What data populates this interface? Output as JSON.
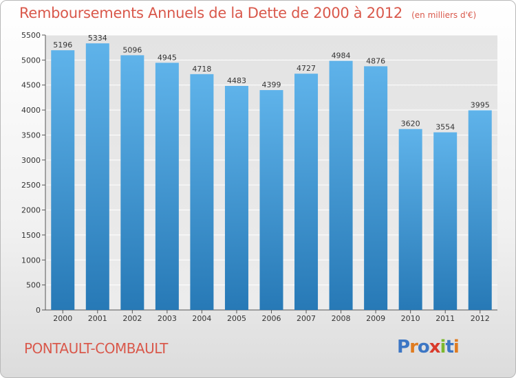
{
  "header": {
    "title": "Remboursements Annuels de la Dette de 2000 à 2012",
    "unit": "(en milliers d'€)"
  },
  "footer": {
    "town": "PONTAULT-COMBAULT",
    "logo_text": "Proxiti"
  },
  "colors": {
    "title": "#d9584b",
    "bar_top": "#5fb3ea",
    "bar_bottom": "#2779b6",
    "logo_letters": [
      "#3c76c4",
      "#e07b1f",
      "#3c76c4",
      "#d93a2b",
      "#7cb82f",
      "#3c76c4",
      "#e07b1f"
    ]
  },
  "chart_data": {
    "type": "bar",
    "categories": [
      "2000",
      "2001",
      "2002",
      "2003",
      "2004",
      "2005",
      "2006",
      "2007",
      "2008",
      "2009",
      "2010",
      "2011",
      "2012"
    ],
    "values": [
      5196,
      5334,
      5096,
      4945,
      4718,
      4483,
      4399,
      4727,
      4984,
      4876,
      3620,
      3554,
      3995
    ],
    "ylim": [
      0,
      5500
    ],
    "yticks": [
      0,
      500,
      1000,
      1500,
      2000,
      2500,
      3000,
      3500,
      4000,
      4500,
      5000,
      5500
    ],
    "grid": true,
    "xlabel": "",
    "ylabel": ""
  }
}
